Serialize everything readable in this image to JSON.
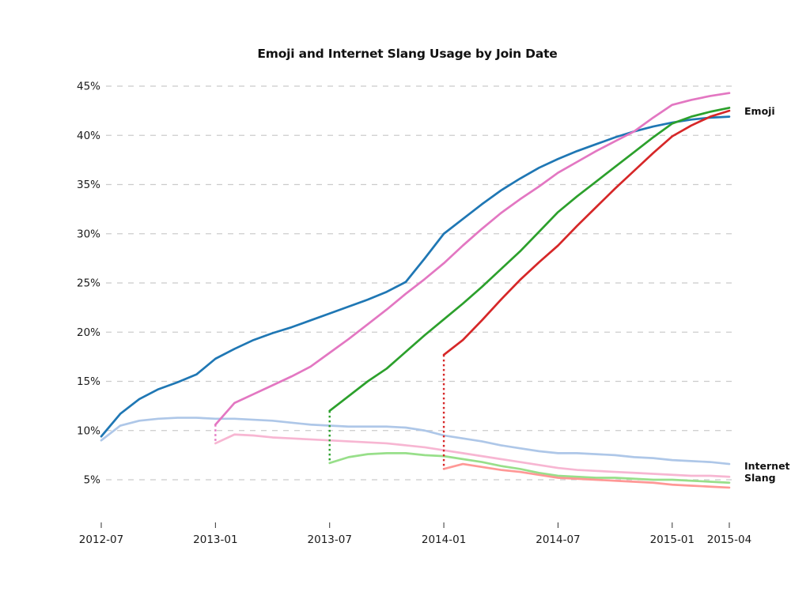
{
  "chart_data": {
    "type": "line",
    "title": "Emoji and Internet Slang Usage by Join Date",
    "x_unit": "months since 2012-07",
    "x_ticks": [
      {
        "label": "2012-07",
        "month": 0
      },
      {
        "label": "2013-01",
        "month": 6
      },
      {
        "label": "2013-07",
        "month": 12
      },
      {
        "label": "2014-01",
        "month": 18
      },
      {
        "label": "2014-07",
        "month": 24
      },
      {
        "label": "2015-01",
        "month": 30
      },
      {
        "label": "2015-04",
        "month": 33
      }
    ],
    "y_ticks": [
      5,
      10,
      15,
      20,
      25,
      30,
      35,
      40,
      45
    ],
    "y_tick_suffix": "%",
    "ylim": [
      5,
      45
    ],
    "grid": "horizontal-dashed",
    "grid_color": "#cbcbcb",
    "series": [
      {
        "name": "Emoji — joined 2012-07",
        "group": "Emoji",
        "join_date": "2012-07",
        "start_month": 0,
        "color": "#1f77b4",
        "values": [
          9.4,
          11.7,
          13.2,
          14.2,
          14.9,
          15.7,
          17.3,
          18.3,
          19.2,
          19.9,
          20.5,
          21.2,
          21.9,
          22.6,
          23.3,
          24.1,
          25.1,
          27.5,
          30.0,
          31.5,
          33.0,
          34.4,
          35.6,
          36.7,
          37.6,
          38.4,
          39.1,
          39.8,
          40.4,
          40.9,
          41.3,
          41.6,
          41.8,
          41.9
        ]
      },
      {
        "name": "Emoji — joined 2013-01",
        "group": "Emoji",
        "join_date": "2013-01",
        "start_month": 6,
        "color": "#e377c2",
        "values": [
          10.6,
          12.8,
          13.7,
          14.6,
          15.5,
          16.5,
          17.9,
          19.3,
          20.8,
          22.3,
          23.9,
          25.4,
          27.0,
          28.8,
          30.5,
          32.1,
          33.5,
          34.8,
          36.2,
          37.3,
          38.4,
          39.4,
          40.4,
          41.8,
          43.1,
          43.6,
          44.0,
          44.3
        ]
      },
      {
        "name": "Emoji — joined 2013-07",
        "group": "Emoji",
        "join_date": "2013-07",
        "start_month": 12,
        "color": "#2ca02c",
        "values": [
          12.0,
          13.5,
          15.0,
          16.3,
          18.0,
          19.7,
          21.3,
          22.9,
          24.6,
          26.4,
          28.2,
          30.2,
          32.2,
          33.8,
          35.3,
          36.8,
          38.3,
          39.8,
          41.2,
          41.9,
          42.4,
          42.8
        ]
      },
      {
        "name": "Emoji — joined 2014-01",
        "group": "Emoji",
        "join_date": "2014-01",
        "start_month": 18,
        "color": "#d62728",
        "values": [
          17.7,
          19.2,
          21.2,
          23.3,
          25.3,
          27.1,
          28.8,
          30.8,
          32.7,
          34.6,
          36.4,
          38.2,
          39.9,
          41.0,
          41.9,
          42.5
        ]
      },
      {
        "name": "Internet Slang — joined 2012-07",
        "group": "Internet Slang",
        "join_date": "2012-07",
        "start_month": 0,
        "color": "#aec7e8",
        "values": [
          9.0,
          10.5,
          11.0,
          11.2,
          11.3,
          11.3,
          11.2,
          11.2,
          11.1,
          11.0,
          10.8,
          10.6,
          10.5,
          10.4,
          10.4,
          10.4,
          10.3,
          10.0,
          9.5,
          9.2,
          8.9,
          8.5,
          8.2,
          7.9,
          7.7,
          7.7,
          7.6,
          7.5,
          7.3,
          7.2,
          7.0,
          6.9,
          6.8,
          6.6
        ]
      },
      {
        "name": "Internet Slang — joined 2013-01",
        "group": "Internet Slang",
        "join_date": "2013-01",
        "start_month": 6,
        "color": "#f7b6d2",
        "values": [
          8.7,
          9.6,
          9.5,
          9.3,
          9.2,
          9.1,
          9.0,
          8.9,
          8.8,
          8.7,
          8.5,
          8.3,
          8.0,
          7.7,
          7.4,
          7.1,
          6.8,
          6.5,
          6.2,
          6.0,
          5.9,
          5.8,
          5.7,
          5.6,
          5.5,
          5.4,
          5.4,
          5.3
        ]
      },
      {
        "name": "Internet Slang — joined 2013-07",
        "group": "Internet Slang",
        "join_date": "2013-07",
        "start_month": 12,
        "color": "#98df8a",
        "values": [
          6.7,
          7.3,
          7.6,
          7.7,
          7.7,
          7.5,
          7.4,
          7.1,
          6.8,
          6.4,
          6.1,
          5.7,
          5.4,
          5.3,
          5.2,
          5.2,
          5.1,
          5.0,
          5.0,
          4.9,
          4.8,
          4.7
        ]
      },
      {
        "name": "Internet Slang — joined 2014-01",
        "group": "Internet Slang",
        "join_date": "2014-01",
        "start_month": 18,
        "color": "#ff9896",
        "values": [
          6.1,
          6.6,
          6.3,
          6.0,
          5.8,
          5.5,
          5.2,
          5.1,
          5.0,
          4.9,
          4.8,
          4.7,
          4.5,
          4.4,
          4.3,
          4.2
        ]
      }
    ],
    "connectors": [
      {
        "month": 6,
        "from": 10.6,
        "to": 8.7,
        "color": "#e377c2"
      },
      {
        "month": 12,
        "from": 12.0,
        "to": 6.7,
        "color": "#2ca02c"
      },
      {
        "month": 18,
        "from": 17.7,
        "to": 6.1,
        "color": "#d62728"
      }
    ],
    "right_labels": {
      "emoji": "Emoji",
      "internet_slang": [
        "Internet",
        "Slang"
      ]
    }
  }
}
